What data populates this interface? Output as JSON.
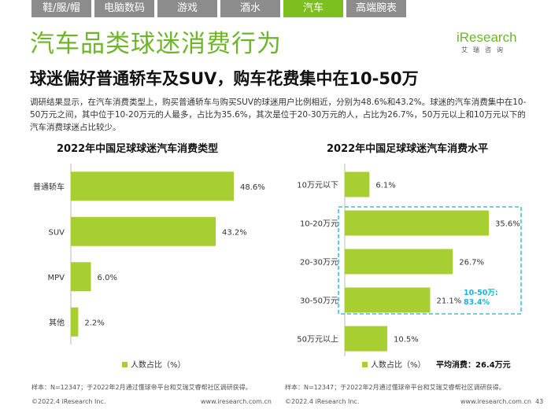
{
  "tabs": [
    "鞋/服/帽",
    "电脑数码",
    "游戏",
    "酒水",
    "汽车",
    "高端腕表"
  ],
  "active_tab": "汽车",
  "title": "汽车品类球迷消费行为",
  "logo": {
    "brand": "iResearch",
    "brand_zh": "艾瑞咨询"
  },
  "subtitle": "球迷偏好普通轿车及SUV，购车花费集中在10-50万",
  "description": "调研结果显示，在汽车消费类型上，购买普通轿车与购买SUV的球迷用户比例相近，分别为48.6%和43.2%。球迷的汽车消费集中在10-50万元之间，其中位于10-20万元的人最多，占比为35.6%，其次是位于20-30万元的人，占比为26.7%，50万元以上和10万元以下的汽车消费球迷占比较少。",
  "colors": {
    "bar": "#a8cf31",
    "accent": "#6fb52c",
    "highlight": "#19b4d4"
  },
  "chart_data": [
    {
      "type": "bar",
      "orientation": "horizontal",
      "title": "2022年中国足球球迷汽车消费类型",
      "categories": [
        "普通轿车",
        "SUV",
        "MPV",
        "其他"
      ],
      "values": [
        48.6,
        43.2,
        6.0,
        2.2
      ],
      "value_labels": [
        "48.6%",
        "43.2%",
        "6.0%",
        "2.2%"
      ],
      "legend": "人数占比（%）"
    },
    {
      "type": "bar",
      "orientation": "horizontal",
      "title": "2022年中国足球球迷汽车消费水平",
      "categories": [
        "10万元以下",
        "10-20万元",
        "20-30万元",
        "30-50万元",
        "50万元以上"
      ],
      "values": [
        6.1,
        35.6,
        26.7,
        21.1,
        10.5
      ],
      "value_labels": [
        "6.1%",
        "35.6%",
        "26.7%",
        "21.1%",
        "10.5%"
      ],
      "legend": "人数占比（%）",
      "annotation": {
        "label": "10-50万:",
        "value": "83.4%"
      },
      "average": "平均消费：26.4万元"
    }
  ],
  "notes": {
    "left": "样本：N=12347；于2022年2月通过懂球帝平台和艾瑞艾睿帮社区调研获得。",
    "right": "样本：N=12347；于2022年2月通过懂球帝平台和艾瑞艾睿帮社区调研获得。"
  },
  "footer": {
    "left_copyright": "©2022.4 iResearch Inc.",
    "left_url": "www.iresearch.com.cn",
    "right_copyright": "©2022.4 iResearch Inc.",
    "right_url": "www.iresearch.com.cn",
    "page": "43"
  }
}
